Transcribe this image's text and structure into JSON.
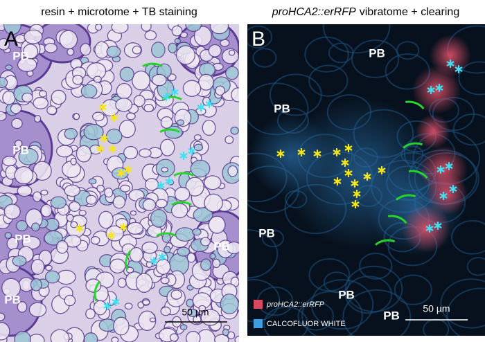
{
  "panels": [
    {
      "letter": "A",
      "title": "resin + microtome + TB staining",
      "labels": [
        "PB",
        "PB",
        "PB",
        "PB",
        "PB"
      ],
      "scale_bar": "50 µm"
    },
    {
      "letter": "B",
      "title_italic": "proHCA2::erRFP",
      "title": "vibratome + clearing",
      "labels": [
        "PB",
        "PB",
        "PB",
        "PB",
        "PB"
      ],
      "scale_bar": "50 µm",
      "legend": [
        "proHCA2::erRFP",
        "CALCOFLUOR WHITE"
      ]
    }
  ]
}
